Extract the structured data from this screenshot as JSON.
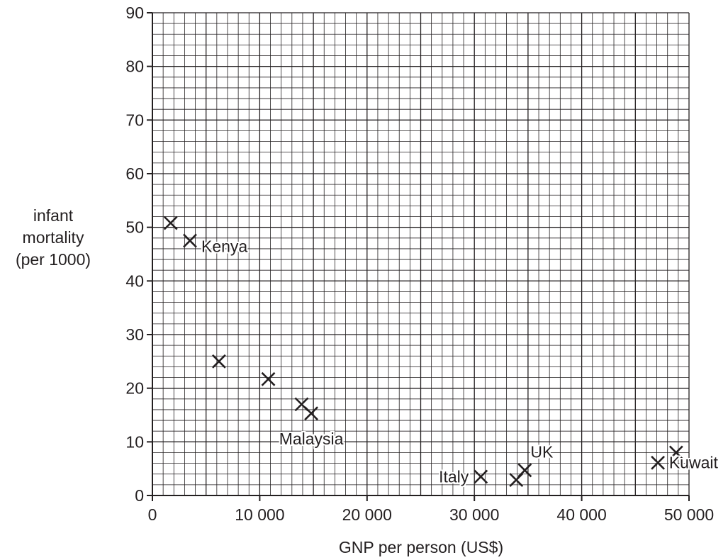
{
  "chart_data": {
    "type": "scatter",
    "xlabel": "GNP per person (US$)",
    "ylabel": [
      "infant",
      "mortality",
      "(per 1000)"
    ],
    "xlim": [
      0,
      50000
    ],
    "ylim": [
      0,
      90
    ],
    "x_ticks": [
      0,
      10000,
      20000,
      30000,
      40000,
      50000
    ],
    "x_tick_labels": [
      "0",
      "10 000",
      "20 000",
      "30 000",
      "40 000",
      "50 000"
    ],
    "y_ticks": [
      0,
      10,
      20,
      30,
      40,
      50,
      60,
      70,
      80,
      90
    ],
    "y_tick_labels": [
      "0",
      "10",
      "20",
      "30",
      "40",
      "50",
      "60",
      "70",
      "80",
      "90"
    ],
    "grid": true,
    "marker": "x",
    "points": [
      {
        "x": 1700,
        "y": 50.8
      },
      {
        "x": 3500,
        "y": 47.5,
        "label": "Kenya"
      },
      {
        "x": 6200,
        "y": 25
      },
      {
        "x": 10800,
        "y": 21.7
      },
      {
        "x": 13900,
        "y": 17
      },
      {
        "x": 14800,
        "y": 15.3,
        "label": "Malaysia"
      },
      {
        "x": 30600,
        "y": 3.5,
        "label": "Italy"
      },
      {
        "x": 33900,
        "y": 2.9
      },
      {
        "x": 34700,
        "y": 4.7,
        "label": "UK"
      },
      {
        "x": 47100,
        "y": 6.1
      },
      {
        "x": 48800,
        "y": 8,
        "label": "Kuwait"
      }
    ]
  }
}
